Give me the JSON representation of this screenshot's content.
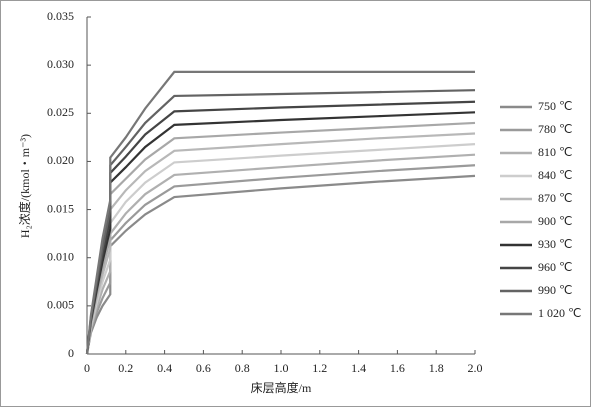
{
  "chart_data": {
    "type": "line",
    "y_label": "H₂浓度/(kmol・m⁻³)",
    "x_label": "床层高度/m",
    "x": [
      0,
      0.02,
      0.05,
      0.08,
      0.12,
      0.12,
      0.2,
      0.3,
      0.45,
      1.0,
      1.5,
      2.0
    ],
    "xlim": [
      0,
      2.0
    ],
    "xticks": [
      0,
      0.2,
      0.4,
      0.6,
      0.8,
      {
        "value": 1.0,
        "label": "1.0"
      },
      1.2,
      1.4,
      1.6,
      1.8,
      {
        "value": 2.0,
        "label": "2.0"
      }
    ],
    "ylim": [
      0,
      0.035
    ],
    "yticks": [
      0,
      0.005,
      {
        "value": 0.01,
        "label": "0.010"
      },
      0.015,
      {
        "value": 0.02,
        "label": "0.020"
      },
      0.025,
      {
        "value": 0.03,
        "label": "0.030"
      },
      0.035
    ],
    "grid": false,
    "legend": "right",
    "series": [
      {
        "name": "750 ℃",
        "color": "#8a8a8a",
        "values": [
          0,
          0.0022,
          0.0038,
          0.005,
          0.0062,
          0.0112,
          0.0128,
          0.0145,
          0.0163,
          0.0172,
          0.0179,
          0.0185
        ]
      },
      {
        "name": "780 ℃",
        "color": "#9a9a9a",
        "values": [
          0,
          0.0024,
          0.0043,
          0.0058,
          0.0074,
          0.0118,
          0.0136,
          0.0155,
          0.0174,
          0.0183,
          0.019,
          0.0196
        ]
      },
      {
        "name": "810 ℃",
        "color": "#b0b0b0",
        "values": [
          0,
          0.0026,
          0.0048,
          0.0067,
          0.0086,
          0.0125,
          0.0146,
          0.0166,
          0.0186,
          0.0194,
          0.0201,
          0.0207
        ]
      },
      {
        "name": "840 ℃",
        "color": "#cdcdcd",
        "values": [
          0,
          0.0028,
          0.0053,
          0.0075,
          0.0098,
          0.0136,
          0.0158,
          0.0178,
          0.0199,
          0.0206,
          0.0212,
          0.0218
        ]
      },
      {
        "name": "870 ℃",
        "color": "#b8b8b8",
        "values": [
          0,
          0.003,
          0.0058,
          0.0082,
          0.011,
          0.015,
          0.017,
          0.019,
          0.0211,
          0.0218,
          0.0224,
          0.0229
        ]
      },
      {
        "name": "900 ℃",
        "color": "#a8a8a8",
        "values": [
          0,
          0.0032,
          0.0062,
          0.0089,
          0.012,
          0.0166,
          0.0182,
          0.0202,
          0.0224,
          0.023,
          0.0235,
          0.024
        ]
      },
      {
        "name": "930 ℃",
        "color": "#333333",
        "values": [
          0,
          0.0034,
          0.0066,
          0.0096,
          0.013,
          0.0178,
          0.0194,
          0.0215,
          0.0238,
          0.0243,
          0.0247,
          0.0251
        ]
      },
      {
        "name": "960 ℃",
        "color": "#454545",
        "values": [
          0,
          0.0036,
          0.007,
          0.0103,
          0.014,
          0.0188,
          0.0205,
          0.0228,
          0.0252,
          0.0256,
          0.0259,
          0.0262
        ]
      },
      {
        "name": "990 ℃",
        "color": "#636363",
        "values": [
          0,
          0.0038,
          0.0075,
          0.011,
          0.015,
          0.0196,
          0.0215,
          0.024,
          0.0268,
          0.027,
          0.0272,
          0.0274
        ]
      },
      {
        "name": "1 020 ℃",
        "color": "#777777",
        "values": [
          0,
          0.004,
          0.008,
          0.012,
          0.016,
          0.0204,
          0.0225,
          0.0255,
          0.0293,
          0.0293,
          0.0293,
          0.0293
        ]
      }
    ]
  }
}
